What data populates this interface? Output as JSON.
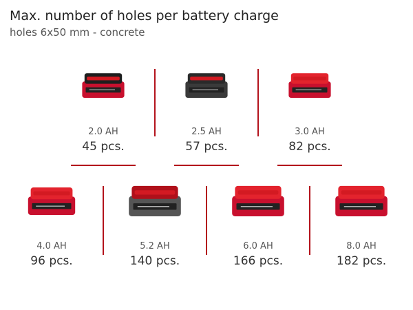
{
  "header": {
    "title": "Max. number of holes per battery charge",
    "subtitle": "holes 6x50 mm - concrete"
  },
  "items": [
    {
      "capacity": "2.0 AH",
      "count": "45 pcs."
    },
    {
      "capacity": "2.5 AH",
      "count": "57 pcs."
    },
    {
      "capacity": "3.0 AH",
      "count": "82 pcs."
    },
    {
      "capacity": "4.0 AH",
      "count": "96 pcs."
    },
    {
      "capacity": "5.2 AH",
      "count": "140 pcs."
    },
    {
      "capacity": "6.0 AH",
      "count": "166 pcs."
    },
    {
      "capacity": "8.0 AH",
      "count": "182 pcs."
    }
  ]
}
